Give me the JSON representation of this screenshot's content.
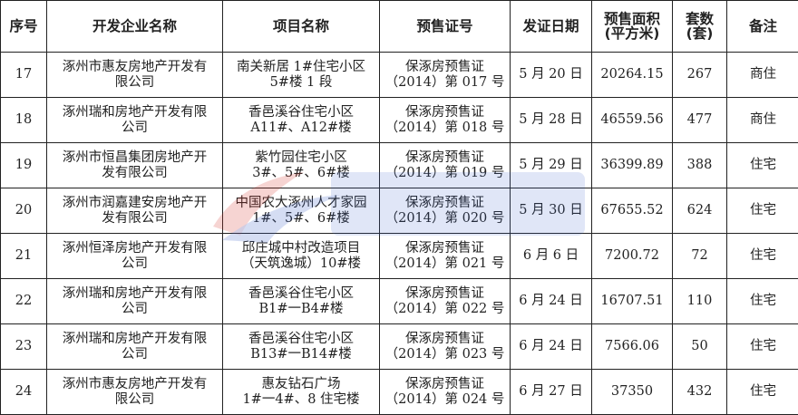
{
  "headers": [
    "序号",
    "开发企业名称",
    "项目名称",
    "预售证号",
    "发证日期",
    "预售面积\n(平方米)",
    "套数\n(套)",
    "备注"
  ],
  "header_lines": {
    "area": [
      "预售面积",
      "(平方米)"
    ],
    "units": [
      "套数",
      "(套)"
    ]
  },
  "rows": [
    {
      "no": "17",
      "company": [
        "涿州市惠友房地产开发有",
        "限公司"
      ],
      "project": [
        "南关新居 1#住宅小区",
        "5#楼 1 段"
      ],
      "permit": [
        "保涿房预售证",
        "（2014）第 017 号"
      ],
      "date": "5 月 20 日",
      "area": "20264.15",
      "units": "267",
      "note": "商住"
    },
    {
      "no": "18",
      "company": [
        "涿州瑞和房地产开发有限",
        "公司"
      ],
      "project": [
        "香邑溪谷住宅小区",
        "A11#、A12#楼"
      ],
      "permit": [
        "保涿房预售证",
        "（2014）第 018 号"
      ],
      "date": "5 月 28 日",
      "area": "46559.56",
      "units": "477",
      "note": "商住"
    },
    {
      "no": "19",
      "company": [
        "涿州市恒昌集团房地产开",
        "发有限公司"
      ],
      "project": [
        "紫竹园住宅小区",
        "3#、5#、6#楼"
      ],
      "permit": [
        "保涿房预售证",
        "（2014）第 019 号"
      ],
      "date": "5 月 29 日",
      "area": "36399.89",
      "units": "388",
      "note": "住宅"
    },
    {
      "no": "20",
      "company": [
        "涿州市润嘉建安房地产开",
        "发有限公司"
      ],
      "project": [
        "中国农大涿州人才家园",
        "1#、5#、6#楼"
      ],
      "permit": [
        "保涿房预售证",
        "（2014）第 020 号"
      ],
      "date": "5 月 30 日",
      "area": "67655.52",
      "units": "624",
      "note": "住宅"
    },
    {
      "no": "21",
      "company": [
        "涿州恒泽房地产开发有限",
        "公司"
      ],
      "project": [
        "邱庄城中村改造项目",
        "（天筑逸城）10#楼"
      ],
      "permit": [
        "保涿房预售证",
        "（2014）第 021 号"
      ],
      "date": "6 月 6 日",
      "area": "7200.72",
      "units": "72",
      "note": "住宅"
    },
    {
      "no": "22",
      "company": [
        "涿州瑞和房地产开发有限",
        "公司"
      ],
      "project": [
        "香邑溪谷住宅小区",
        "B1#一B4#楼"
      ],
      "permit": [
        "保涿房预售证",
        "（2014）第 022 号"
      ],
      "date": "6 月 24 日",
      "area": "16707.51",
      "units": "110",
      "note": "住宅"
    },
    {
      "no": "23",
      "company": [
        "涿州瑞和房地产开发有限",
        "公司"
      ],
      "project": [
        "香邑溪谷住宅小区",
        "B13#一B14#楼"
      ],
      "permit": [
        "保涿房预售证",
        "（2014）第 023 号"
      ],
      "date": "6 月 24 日",
      "area": "7566.06",
      "units": "50",
      "note": "住宅"
    },
    {
      "no": "24",
      "company": [
        "涿州市惠友房地产开发有",
        "限公司"
      ],
      "project": [
        "惠友钻石广场",
        "1#一4#、8 住宅楼"
      ],
      "permit": [
        "保涿房预售证",
        "（2014）第 024 号"
      ],
      "date": "6 月 27 日",
      "area": "37350",
      "units": "432",
      "note": "住宅"
    }
  ],
  "colors": {
    "border": "#222222",
    "text": "#222222",
    "watermark_blue": "#3a62c9",
    "watermark_red": "#d9342b"
  }
}
